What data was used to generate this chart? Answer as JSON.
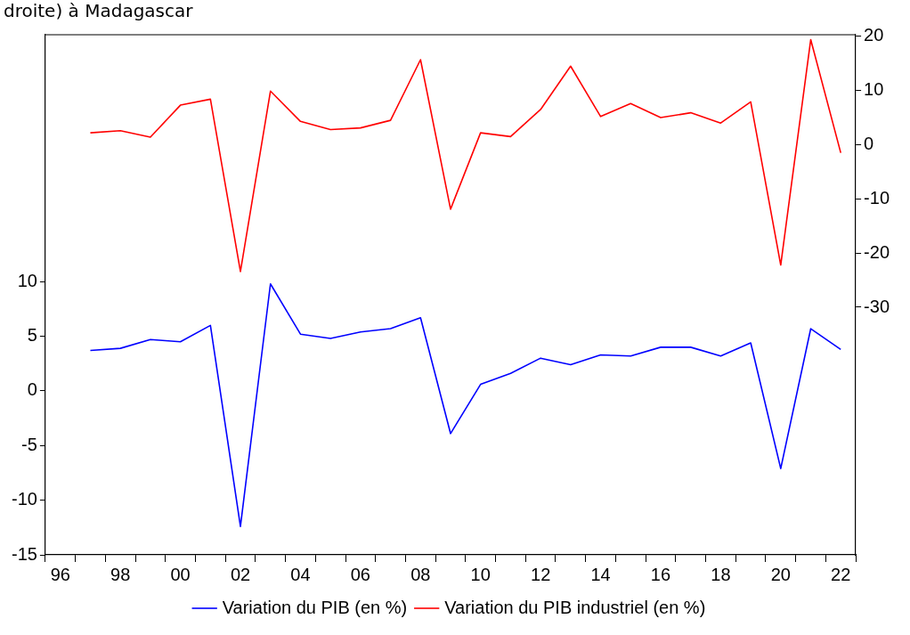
{
  "chart_data": {
    "type": "line",
    "title": "droite) à Madagascar",
    "categories": [
      "96",
      null,
      "98",
      null,
      "00",
      null,
      "02",
      null,
      "04",
      null,
      "06",
      null,
      "08",
      null,
      "10",
      null,
      "12",
      null,
      "14",
      null,
      "16",
      null,
      "18",
      null,
      "20",
      null,
      "22"
    ],
    "series": [
      {
        "name": "Variation du PIB (en %)",
        "color": "#0000ff",
        "axis": "y",
        "values": [
          null,
          3.7,
          3.9,
          4.7,
          4.5,
          6.0,
          -12.4,
          9.8,
          5.2,
          4.8,
          5.4,
          5.7,
          6.7,
          -3.9,
          0.6,
          1.6,
          3.0,
          2.4,
          3.3,
          3.2,
          4.0,
          4.0,
          3.2,
          4.4,
          -7.1,
          5.7,
          3.8
        ]
      },
      {
        "name": "Variation du PIB industriel (en %)",
        "color": "#ff0000",
        "axis": "y2",
        "values": [
          null,
          2.2,
          2.6,
          1.4,
          7.3,
          8.4,
          -23.4,
          9.9,
          4.3,
          2.8,
          3.1,
          4.5,
          15.7,
          -11.9,
          2.2,
          1.5,
          6.5,
          14.5,
          5.2,
          7.6,
          5.0,
          5.9,
          4.0,
          7.9,
          -22.2,
          19.4,
          -1.5
        ]
      }
    ],
    "ylim": [
      -15,
      32.6
    ],
    "yticks": [
      -15,
      -10,
      -5,
      0,
      5,
      10
    ],
    "y2lim": [
      -75.7,
      20.3
    ],
    "y2ticks": [
      -30,
      -20,
      -10,
      0,
      10,
      20
    ],
    "grid": false,
    "legend": "bottom",
    "marker": "none",
    "line_style": "solid"
  }
}
